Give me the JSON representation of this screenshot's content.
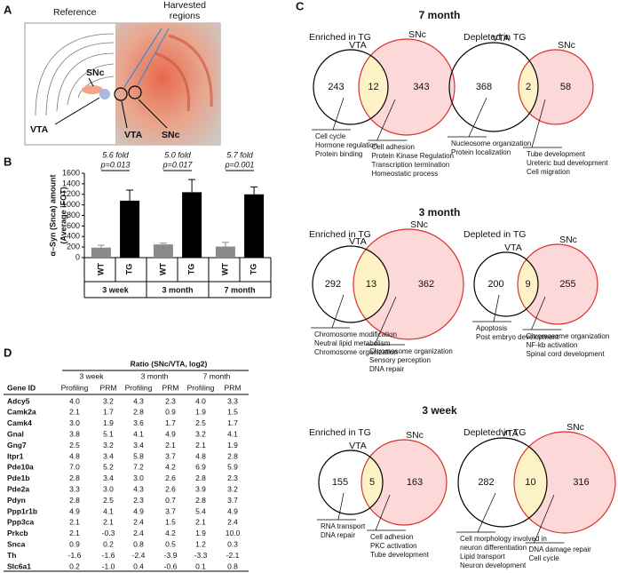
{
  "panel_a": {
    "label": "A",
    "reference": "Reference",
    "harvested": [
      "Harvested",
      "regions"
    ],
    "snc_ref": "SNc",
    "vta_ref": "VTA",
    "vta_img": "VTA",
    "snc_img": "SNc"
  },
  "panel_b_label": "B",
  "chart_data": {
    "type": "bar",
    "y_label": [
      "α–Syn (Snca) amount",
      "(Average iFOT)"
    ],
    "categories": [
      "3 week",
      "3 month",
      "7 month"
    ],
    "series": [
      {
        "name": "WT",
        "color": "#8a8a8a",
        "values": [
          190,
          250,
          210
        ],
        "errors": [
          45,
          25,
          80
        ]
      },
      {
        "name": "TG",
        "color": "#000000",
        "values": [
          1080,
          1240,
          1200
        ],
        "errors": [
          200,
          240,
          140
        ]
      }
    ],
    "ylim": [
      0,
      1600
    ],
    "yticks": [
      0,
      200,
      400,
      600,
      800,
      1000,
      1200,
      1400,
      1600
    ],
    "annotations": [
      {
        "fold": "5.6 fold",
        "p": "p=0.013"
      },
      {
        "fold": "5.0 fold",
        "p": "p=0.017"
      },
      {
        "fold": "5.7 fold",
        "p": "p=0.001"
      }
    ]
  },
  "panel_c": {
    "label": "C",
    "sections": [
      {
        "title": "7 month",
        "venns": [
          {
            "title": "Enriched in TG",
            "left": "VTA",
            "right": "SNc",
            "left_only": "243",
            "overlap": "12",
            "right_only": "343",
            "left_terms": [
              "Cell cycle",
              "Hormone regulation",
              "Protein binding"
            ],
            "right_terms": [
              "Cell adhesion",
              "Protein Kinase Regulation",
              "Transcription termination",
              "Homeostatic process"
            ]
          },
          {
            "title": "Depleted in TG",
            "left": "VTA",
            "right": "SNc",
            "left_only": "368",
            "overlap": "2",
            "right_only": "58",
            "left_terms": [
              "Nucleosome organization",
              "Protein localization"
            ],
            "right_terms": [
              "Tube development",
              "Ureteric bud development",
              "Cell migration"
            ]
          }
        ]
      },
      {
        "title": "3 month",
        "venns": [
          {
            "title": "Enriched in TG",
            "left": "VTA",
            "right": "SNc",
            "left_only": "292",
            "overlap": "13",
            "right_only": "362",
            "left_terms": [
              "Chromosome modification",
              "Neutral lipid metabolism",
              "Chromosome organization"
            ],
            "right_terms": [
              "Chromosome organization",
              "Sensory perception",
              "DNA repair"
            ]
          },
          {
            "title": "Depleted in TG",
            "left": "VTA",
            "right": "SNc",
            "left_only": "200",
            "overlap": "9",
            "right_only": "255",
            "left_terms": [
              "Apoptosis",
              "Post embryo development"
            ],
            "right_terms": [
              "Chromosome organization",
              "NF-kb activation",
              "Spinal cord development"
            ]
          }
        ]
      },
      {
        "title": "3 week",
        "venns": [
          {
            "title": "Enriched in TG",
            "left": "VTA",
            "right": "SNc",
            "left_only": "155",
            "overlap": "5",
            "right_only": "163",
            "left_terms": [
              "RNA transport",
              "DNA repair"
            ],
            "right_terms": [
              "Cell adhesion",
              "PKC activation",
              "Tube development"
            ]
          },
          {
            "title": "Depleted in TG",
            "left": "VTA",
            "right": "SNc",
            "left_only": "282",
            "overlap": "10",
            "right_only": "316",
            "left_terms": [
              "Cell morphology involved in",
              "neuron differentiation",
              "Lipid transport",
              "Neuron development"
            ],
            "right_terms": [
              "DNA damage repair",
              "Cell cycle"
            ]
          }
        ]
      }
    ]
  },
  "panel_d": {
    "label": "D",
    "title": "Ratio (SNc/VTA, log2)",
    "groups": [
      "3 week",
      "3 month",
      "7 month"
    ],
    "columns": [
      "Gene ID",
      "Profiling",
      "PRM",
      "Profiling",
      "PRM",
      "Profiling",
      "PRM"
    ],
    "rows": [
      [
        "Adcy5",
        "4.0",
        "3.2",
        "4.3",
        "2.3",
        "4.0",
        "3.3"
      ],
      [
        "Camk2a",
        "2.1",
        "1.7",
        "2.8",
        "0.9",
        "1.9",
        "1.5"
      ],
      [
        "Camk4",
        "3.0",
        "1.9",
        "3.6",
        "1.7",
        "2.5",
        "1.7"
      ],
      [
        "Gnal",
        "3.8",
        "5.1",
        "4.1",
        "4.9",
        "3.2",
        "4.1"
      ],
      [
        "Gng7",
        "2.5",
        "3.2",
        "3.4",
        "2.1",
        "2.1",
        "1.9"
      ],
      [
        "Itpr1",
        "4.8",
        "3.4",
        "5.8",
        "3.7",
        "4.8",
        "2.8"
      ],
      [
        "Pde10a",
        "7.0",
        "5.2",
        "7.2",
        "4.2",
        "6.9",
        "5.9"
      ],
      [
        "Pde1b",
        "2.8",
        "3.4",
        "3.0",
        "2.6",
        "2.8",
        "2.3"
      ],
      [
        "Pde2a",
        "3.3",
        "3.0",
        "4.3",
        "2.6",
        "3.9",
        "3.2"
      ],
      [
        "Pdyn",
        "2.8",
        "2.5",
        "2.3",
        "0.7",
        "2.8",
        "3.7"
      ],
      [
        "Ppp1r1b",
        "4.9",
        "4.1",
        "4.9",
        "3.7",
        "5.4",
        "4.9"
      ],
      [
        "Ppp3ca",
        "2.1",
        "2.1",
        "2.4",
        "1.5",
        "2.1",
        "2.4"
      ],
      [
        "Prkcb",
        "2.1",
        "-0.3",
        "2.4",
        "4.2",
        "1.9",
        "10.0"
      ],
      [
        "Snca",
        "0.9",
        "0.2",
        "0.8",
        "0.5",
        "1.2",
        "0.3"
      ],
      [
        "Th",
        "-1.6",
        "-1.6",
        "-2.4",
        "-3.9",
        "-3.3",
        "-2.1"
      ],
      [
        "Slc6a1",
        "0.2",
        "-1.0",
        "0.4",
        "-0.6",
        "0.1",
        "0.8"
      ]
    ]
  }
}
